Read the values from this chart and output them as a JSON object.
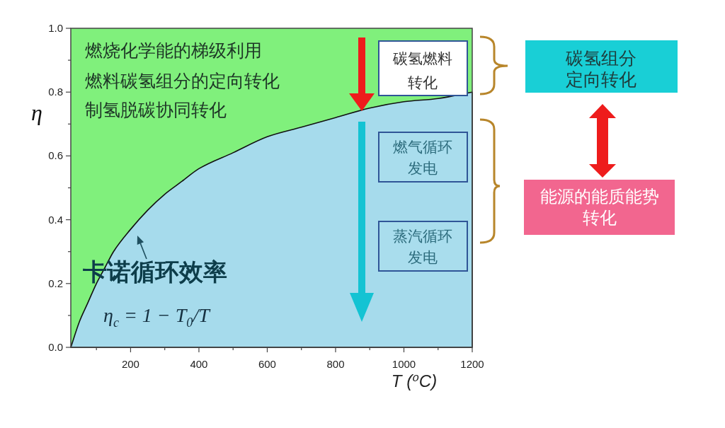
{
  "chart_data": {
    "type": "area",
    "xlabel": "T (⁰C)",
    "ylabel": "η",
    "x": [
      25,
      50,
      75,
      100,
      125,
      150,
      200,
      250,
      300,
      350,
      400,
      500,
      600,
      700,
      800,
      900,
      1000,
      1100,
      1200
    ],
    "series": [
      {
        "color": "#a6dbec",
        "values": [
          0,
          0.08,
          0.14,
          0.2,
          0.25,
          0.3,
          0.37,
          0.43,
          0.48,
          0.52,
          0.56,
          0.61,
          0.66,
          0.69,
          0.72,
          0.75,
          0.77,
          0.78,
          0.8
        ]
      }
    ],
    "xlim": [
      25,
      1200
    ],
    "ylim": [
      0,
      1
    ],
    "xticks": [
      {
        "value": 100,
        "label": null
      },
      200,
      {
        "value": 300,
        "label": null
      },
      400,
      {
        "value": 500,
        "label": null
      },
      600,
      {
        "value": 700,
        "label": null
      },
      800,
      {
        "value": 900,
        "label": null
      },
      1000,
      {
        "value": 1100,
        "label": null
      },
      1200
    ],
    "yticks": [
      {
        "value": 0,
        "label": "0.0"
      },
      {
        "value": 0.1,
        "label": null
      },
      {
        "value": 0.2,
        "label": "0.2"
      },
      {
        "value": 0.3,
        "label": null
      },
      {
        "value": 0.4,
        "label": "0.4"
      },
      {
        "value": 0.5,
        "label": null
      },
      {
        "value": 0.6,
        "label": "0.6"
      },
      {
        "value": 0.7,
        "label": null
      },
      {
        "value": 0.8,
        "label": "0.8"
      },
      {
        "value": 0.9,
        "label": null
      },
      {
        "value": 1,
        "label": "1.0"
      }
    ],
    "bands": [
      {
        "axis": "y",
        "from": 0,
        "to": 1,
        "color": "#80f07c"
      }
    ],
    "annotations": [
      "燃烧化学能的梯级利用",
      "燃料碳氢组分的定向转化",
      "制氢脱碳协同转化",
      "卡诺循环效率",
      "η$_{c}$ = 1 − T$_{0}$/T",
      "碳氢燃料转化",
      "燃气循环发电",
      "蒸汽循环发电",
      "碳氢组分定向转化",
      "能源的能质能势转化"
    ]
  }
}
